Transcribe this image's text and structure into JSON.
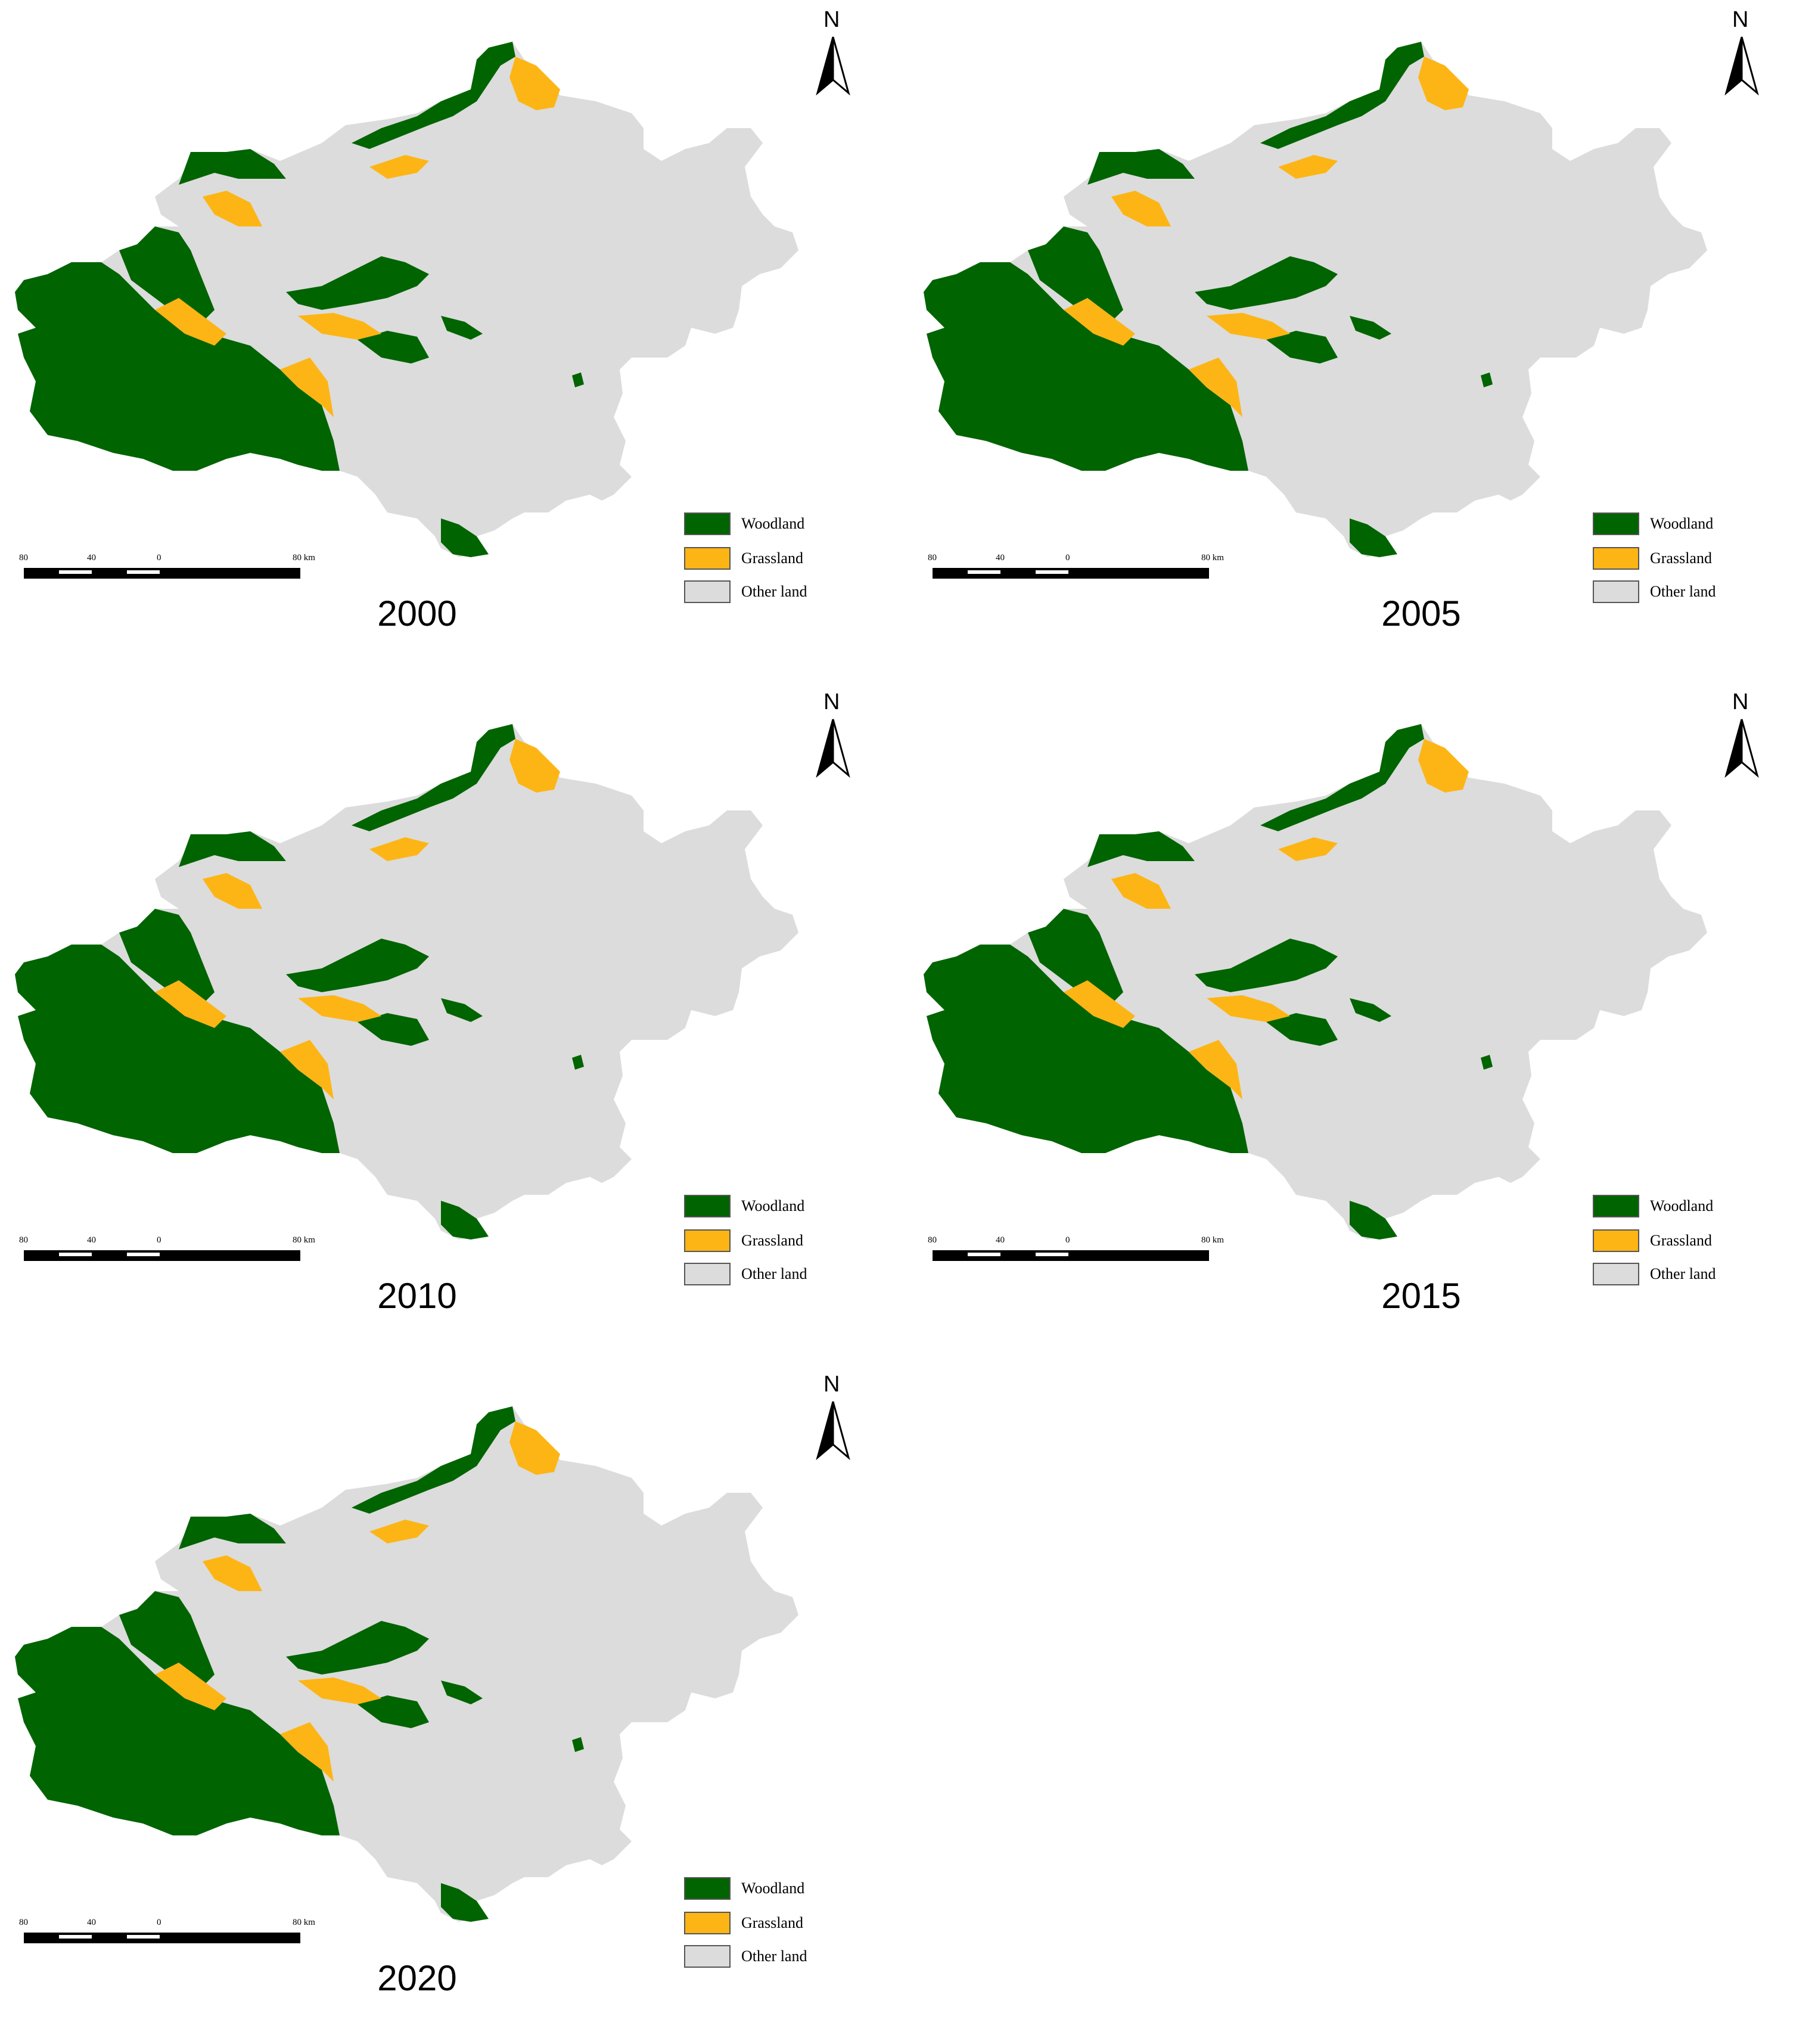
{
  "colors": {
    "woodland": "#006400",
    "grassland": "#FDB515",
    "other_land": "#DCDCDC",
    "outline": "#555555"
  },
  "north": "N",
  "legend": [
    {
      "label": "Woodland",
      "color": "#006400"
    },
    {
      "label": "Grassland",
      "color": "#FDB515"
    },
    {
      "label": "Other land",
      "color": "#DCDCDC"
    }
  ],
  "scale": {
    "t0": "80",
    "t1": "40",
    "t2": "0",
    "t3": "80 km"
  },
  "panels": [
    {
      "year": "2000"
    },
    {
      "year": "2005"
    },
    {
      "year": "2010"
    },
    {
      "year": "2015"
    },
    {
      "year": "2020"
    }
  ]
}
